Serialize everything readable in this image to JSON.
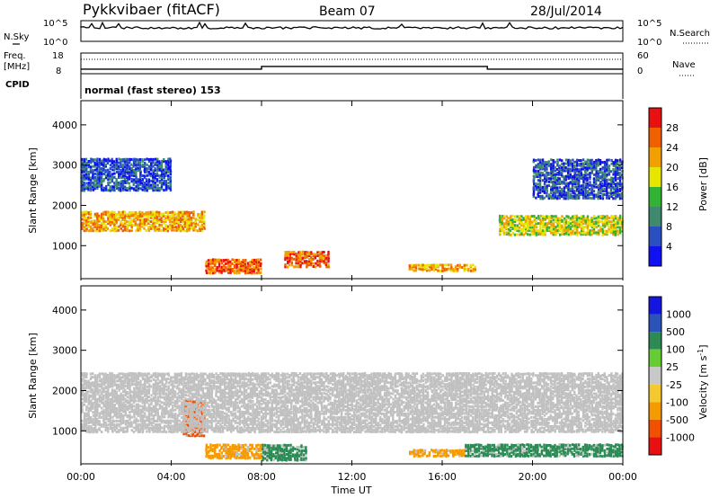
{
  "header": {
    "station": "Pykkvibaer (fitACF)",
    "beam": "Beam 07",
    "date": "28/Jul/2014"
  },
  "side_labels": {
    "nsky": "N.Sky",
    "nsearch": "N.Search",
    "freq_line1": "Freq.",
    "freq_line2": "[MHz]",
    "nave": "Nave",
    "cpid": "CPID"
  },
  "cpid_text": "normal (fast stereo) 153",
  "noise_ticks": {
    "top": "10^5",
    "bottom": "10^0"
  },
  "freq_ticks": {
    "left": [
      "18",
      "8"
    ],
    "right": [
      "60",
      "0"
    ]
  },
  "colors": {
    "power": [
      "#1010f0",
      "#2a4fc0",
      "#3f8a6e",
      "#33b333",
      "#e6e600",
      "#f0a000",
      "#f06000",
      "#e81010"
    ],
    "velocity": [
      "#e81010",
      "#f05000",
      "#f59a00",
      "#f5c830",
      "#c8c8c8",
      "#66cc33",
      "#2d8a55",
      "#2a52b8",
      "#1515e0"
    ],
    "ground_scatter": "#c0c0c0"
  },
  "chart_data": [
    {
      "type": "heatmap",
      "panel": "power",
      "ylabel": "Slant Range [km]",
      "xlabel": "",
      "ylim": [
        180,
        4600
      ],
      "xlim": [
        0,
        24
      ],
      "y_ticks": [
        "1000",
        "2000",
        "3000",
        "4000"
      ],
      "colorbar": {
        "label": "Power [dB]",
        "range": [
          0,
          32
        ],
        "ticks": [
          "4",
          "8",
          "12",
          "16",
          "20",
          "24",
          "28"
        ]
      },
      "echo_bands": [
        {
          "t_start": 0.0,
          "t_end": 5.5,
          "range_start": 1400,
          "range_end": 1900,
          "level_db": 22
        },
        {
          "t_start": 5.5,
          "t_end": 8.0,
          "range_start": 350,
          "range_end": 700,
          "level_db": 26
        },
        {
          "t_start": 9.0,
          "t_end": 11.0,
          "range_start": 500,
          "range_end": 900,
          "level_db": 26
        },
        {
          "t_start": 14.5,
          "t_end": 17.5,
          "range_start": 400,
          "range_end": 600,
          "level_db": 24
        },
        {
          "t_start": 18.5,
          "t_end": 24.0,
          "range_start": 1300,
          "range_end": 1800,
          "level_db": 20
        },
        {
          "t_start": 0.0,
          "t_end": 4.0,
          "range_start": 2400,
          "range_end": 3200,
          "level_db": 8
        },
        {
          "t_start": 20.0,
          "t_end": 24.0,
          "range_start": 2200,
          "range_end": 3200,
          "level_db": 6
        }
      ]
    },
    {
      "type": "heatmap",
      "panel": "velocity",
      "ylabel": "Slant Range [km]",
      "xlabel": "Time UT",
      "ylim": [
        180,
        4600
      ],
      "xlim": [
        0,
        24
      ],
      "y_ticks": [
        "1000",
        "2000",
        "3000",
        "4000"
      ],
      "x_ticks": [
        "00:00",
        "04:00",
        "08:00",
        "12:00",
        "16:00",
        "20:00",
        "00:00"
      ],
      "colorbar": {
        "label": "Velocity [m s-1]",
        "ticks": [
          "1000",
          "500",
          "100",
          "25",
          "-25",
          "-100",
          "-500",
          "-1000"
        ]
      },
      "echo_bands": [
        {
          "t_start": 4.5,
          "t_end": 5.5,
          "range_start": 900,
          "range_end": 1800,
          "velocity": -500
        },
        {
          "t_start": 5.5,
          "t_end": 8.0,
          "range_start": 350,
          "range_end": 700,
          "velocity": -200
        },
        {
          "t_start": 8.0,
          "t_end": 10.0,
          "range_start": 300,
          "range_end": 700,
          "velocity": 150
        },
        {
          "t_start": 14.5,
          "t_end": 17.0,
          "range_start": 400,
          "range_end": 600,
          "velocity": -150
        },
        {
          "t_start": 17.0,
          "t_end": 24.0,
          "range_start": 400,
          "range_end": 700,
          "velocity": 120
        },
        {
          "t_start": 0.0,
          "t_end": 24.0,
          "range_start": 1000,
          "range_end": 2500,
          "velocity": 0
        }
      ]
    }
  ],
  "noise_series": {
    "search_level_fraction": 0.72
  },
  "freq_series": [
    {
      "t_start": 0.0,
      "t_end": 8.0,
      "mhz": 10.2
    },
    {
      "t_start": 8.0,
      "t_end": 18.0,
      "mhz": 11.5
    },
    {
      "t_start": 18.0,
      "t_end": 24.0,
      "mhz": 10.2
    }
  ],
  "nave_level": 30
}
